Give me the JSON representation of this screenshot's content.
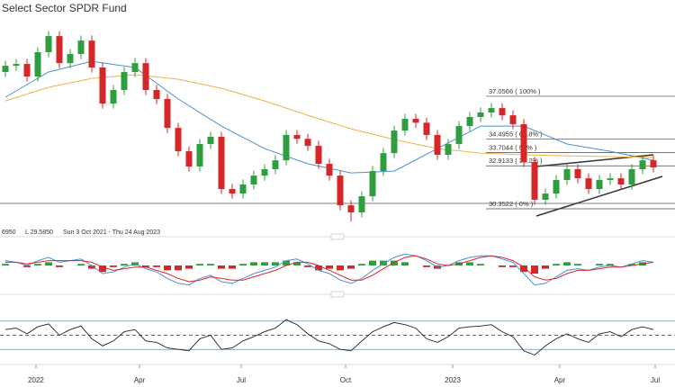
{
  "chart_data": {
    "type": "candlestick",
    "title": "Select Sector SPDR Fund",
    "info": [
      "6950",
      "L 29.5850",
      "Sun 3 Oct 2021 - Thu 24 Aug 2023"
    ],
    "xlim": [
      -0.5,
      62
    ],
    "xticks": [
      {
        "value": 2.83,
        "label": "2022"
      },
      {
        "value": 12.42,
        "label": "Apr"
      },
      {
        "value": 21.83,
        "label": "Jul"
      },
      {
        "value": 31.5,
        "label": "Oct"
      },
      {
        "value": 41.42,
        "label": "2023"
      },
      {
        "value": 51.33,
        "label": "Apr"
      },
      {
        "value": 60.17,
        "label": "Jul"
      }
    ],
    "ylim": [
      29.28,
      42.36
    ],
    "up_color": "#2e9e3e",
    "down_color": "#d62728",
    "open": [
      38.5,
      38.87,
      38.98,
      38.23,
      39.68,
      40.64,
      39.03,
      39.57,
      40.37,
      38.77,
      36.62,
      37.43,
      38.5,
      39.03,
      37.43,
      36.89,
      35.17,
      33.78,
      32.87,
      34.21,
      34.64,
      31.53,
      31.26,
      31.8,
      32.33,
      32.71,
      33.24,
      34.75,
      34.52,
      34.1,
      33.03,
      32.33,
      30.56,
      30.14,
      31.1,
      32.6,
      33.67,
      35.01,
      35.71,
      35.48,
      34.75,
      33.57,
      34.21,
      35.28,
      35.82,
      36.09,
      36.35,
      35.92,
      35.39,
      33.14,
      30.89,
      31.26,
      32.07,
      32.71,
      32.17,
      31.53,
      32.07,
      32.17,
      31.8,
      32.71,
      33.24
    ],
    "high": [
      39.17,
      39.28,
      39.28,
      39.98,
      40.94,
      40.94,
      39.87,
      40.67,
      40.67,
      39.07,
      37.73,
      38.8,
      39.33,
      39.33,
      37.73,
      37.19,
      35.47,
      34.08,
      34.51,
      34.94,
      34.94,
      31.83,
      32.1,
      32.63,
      33.01,
      33.54,
      35.05,
      35.05,
      34.82,
      34.4,
      33.33,
      32.63,
      30.86,
      31.4,
      32.9,
      33.97,
      35.31,
      36.01,
      36.01,
      35.78,
      35.05,
      34.51,
      35.58,
      36.12,
      36.39,
      36.65,
      36.65,
      36.22,
      35.69,
      33.44,
      31.56,
      32.37,
      33.01,
      33.01,
      32.47,
      32.37,
      32.47,
      32.47,
      33.01,
      33.54,
      33.54
    ],
    "low": [
      38.2,
      38.57,
      37.93,
      37.93,
      39.38,
      38.73,
      38.73,
      39.27,
      38.47,
      36.32,
      36.32,
      37.13,
      38.2,
      37.13,
      36.59,
      34.87,
      33.48,
      32.57,
      32.57,
      33.91,
      31.23,
      30.96,
      30.96,
      31.5,
      32.03,
      32.41,
      32.94,
      34.22,
      33.8,
      32.73,
      32.03,
      30.26,
      29.59,
      29.84,
      30.8,
      32.3,
      33.37,
      34.71,
      35.18,
      34.45,
      33.27,
      33.27,
      33.91,
      34.98,
      35.52,
      35.79,
      35.62,
      35.09,
      32.84,
      30.59,
      30.59,
      30.96,
      31.77,
      31.87,
      31.23,
      31.23,
      31.77,
      31.5,
      31.5,
      32.41,
      32.52
    ],
    "close": [
      38.87,
      38.98,
      38.23,
      39.68,
      40.64,
      39.03,
      39.57,
      40.37,
      38.77,
      36.62,
      37.43,
      38.5,
      39.03,
      37.43,
      36.89,
      35.17,
      33.78,
      32.87,
      34.21,
      34.64,
      31.53,
      31.26,
      31.8,
      32.33,
      32.71,
      33.24,
      34.75,
      34.52,
      34.1,
      33.03,
      32.33,
      30.56,
      30.14,
      31.1,
      32.6,
      33.67,
      35.01,
      35.71,
      35.48,
      34.75,
      33.57,
      34.21,
      35.28,
      35.82,
      36.09,
      36.35,
      35.92,
      35.39,
      33.14,
      30.89,
      31.26,
      32.07,
      32.71,
      32.17,
      31.53,
      32.07,
      32.17,
      31.8,
      32.71,
      33.24,
      32.82
    ],
    "series": [
      {
        "color": "#4a8fd4",
        "x": [
          0,
          4,
          8,
          12,
          16,
          20,
          24,
          28,
          32,
          36,
          40,
          44,
          48,
          52,
          56,
          60
        ],
        "values": [
          37.0,
          38.5,
          39.14,
          38.77,
          36.89,
          35.28,
          33.94,
          33.03,
          32.49,
          32.6,
          33.94,
          35.28,
          35.28,
          34.21,
          33.78,
          33.24
        ]
      },
      {
        "color": "#f0b24a",
        "x": [
          0,
          4,
          8,
          12,
          16,
          20,
          24,
          28,
          32,
          36,
          40,
          44,
          48,
          52,
          56,
          60
        ],
        "values": [
          36.78,
          37.59,
          38.12,
          38.34,
          38.07,
          37.53,
          36.78,
          35.92,
          35.12,
          34.48,
          33.94,
          33.67,
          33.57,
          33.51,
          33.46,
          33.41
        ]
      }
    ],
    "fib_levels": [
      {
        "value": 37.0566,
        "label": "37.0566 ( 100% )"
      },
      {
        "value": 34.4955,
        "label": "34.4955 ( 61.8% )"
      },
      {
        "value": 33.7044,
        "label": "33.7044 ( 50% )"
      },
      {
        "value": 32.9133,
        "label": "32.9133 ( 38.2% )"
      },
      {
        "value": 30.3522,
        "label": "30.3522 ( 0% )"
      }
    ],
    "macd": {
      "ylim": [
        -1.5,
        1.5
      ],
      "macd_color": "#4a8fd4",
      "signal_color": "#d62728",
      "macd": [
        0.3,
        0.2,
        0.0,
        0.3,
        0.5,
        0.2,
        0.3,
        0.4,
        0.0,
        -0.5,
        -0.4,
        -0.1,
        0.1,
        -0.2,
        -0.4,
        -0.8,
        -1.1,
        -1.2,
        -0.8,
        -0.6,
        -1.0,
        -1.1,
        -0.8,
        -0.5,
        -0.3,
        -0.1,
        0.3,
        0.4,
        0.1,
        -0.3,
        -0.5,
        -0.9,
        -1.1,
        -0.8,
        -0.3,
        0.1,
        0.5,
        0.7,
        0.6,
        0.3,
        -0.1,
        0.0,
        0.3,
        0.5,
        0.6,
        0.6,
        0.4,
        0.2,
        -0.5,
        -1.2,
        -1.1,
        -0.7,
        -0.3,
        -0.2,
        -0.3,
        -0.1,
        0.0,
        -0.1,
        0.1,
        0.3,
        0.2
      ],
      "signal": [
        0.2,
        0.2,
        0.1,
        0.2,
        0.3,
        0.3,
        0.3,
        0.3,
        0.2,
        -0.1,
        -0.3,
        -0.2,
        -0.1,
        -0.1,
        -0.3,
        -0.5,
        -0.8,
        -1.0,
        -0.9,
        -0.7,
        -0.8,
        -0.9,
        -0.9,
        -0.7,
        -0.5,
        -0.3,
        0.0,
        0.2,
        0.2,
        0.0,
        -0.3,
        -0.6,
        -0.9,
        -0.9,
        -0.6,
        -0.2,
        0.2,
        0.5,
        0.6,
        0.4,
        0.1,
        0.0,
        0.1,
        0.3,
        0.5,
        0.6,
        0.5,
        0.3,
        -0.1,
        -0.7,
        -0.9,
        -0.8,
        -0.5,
        -0.3,
        -0.3,
        -0.2,
        -0.1,
        -0.1,
        0.0,
        0.1,
        0.2
      ],
      "histogram": [
        0.1,
        0.0,
        -0.1,
        0.1,
        0.2,
        -0.1,
        0.0,
        0.1,
        -0.2,
        -0.4,
        -0.1,
        0.1,
        0.2,
        -0.1,
        -0.1,
        -0.3,
        -0.3,
        -0.2,
        0.1,
        0.1,
        -0.2,
        -0.2,
        0.1,
        0.2,
        0.2,
        0.2,
        0.3,
        0.2,
        -0.1,
        -0.3,
        -0.2,
        -0.3,
        -0.2,
        0.1,
        0.3,
        0.3,
        0.3,
        0.2,
        0.0,
        -0.1,
        -0.2,
        0.0,
        0.2,
        0.2,
        0.1,
        0.0,
        -0.1,
        -0.1,
        -0.4,
        -0.5,
        -0.2,
        0.1,
        0.2,
        0.1,
        0.0,
        0.1,
        0.1,
        0.0,
        0.1,
        0.2,
        0.0
      ]
    },
    "rsi": {
      "ylim": [
        15,
        85
      ],
      "levels": [
        30,
        50,
        70
      ],
      "color": "#222222",
      "values": [
        58,
        60,
        52,
        62,
        66,
        50,
        58,
        63,
        45,
        35,
        42,
        55,
        58,
        42,
        40,
        32,
        30,
        28,
        45,
        50,
        30,
        32,
        42,
        48,
        55,
        60,
        72,
        65,
        52,
        42,
        38,
        30,
        28,
        42,
        55,
        62,
        68,
        65,
        60,
        45,
        40,
        48,
        60,
        62,
        63,
        65,
        55,
        48,
        28,
        22,
        35,
        45,
        52,
        45,
        40,
        52,
        55,
        48,
        58,
        62,
        58
      ]
    }
  }
}
